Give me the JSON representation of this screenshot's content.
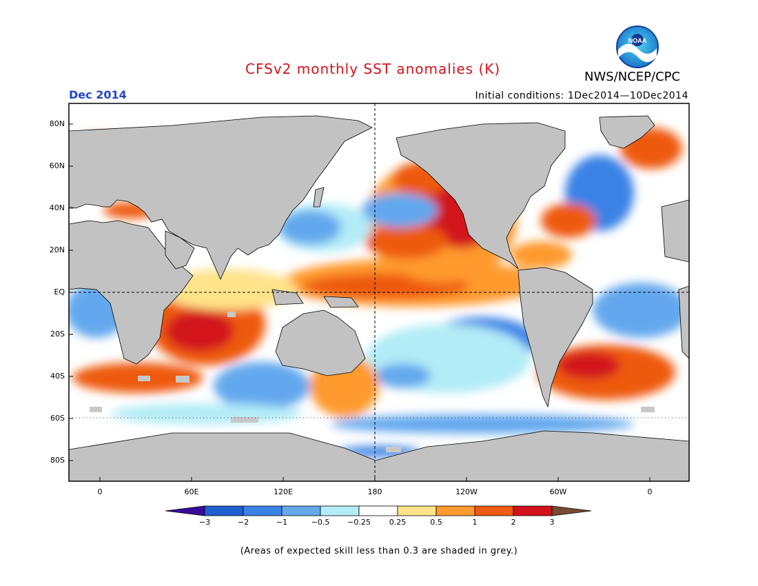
{
  "header": {
    "title": "CFSv2 monthly SST anomalies (K)",
    "agency": "NWS/NCEP/CPC",
    "logo_text": "NOAA",
    "month": "Dec 2014",
    "initial_conditions": "Initial conditions: 1Dec2014—10Dec2014"
  },
  "axes": {
    "lat_labels": [
      "80N",
      "60N",
      "40N",
      "20N",
      "EQ",
      "20S",
      "40S",
      "60S",
      "80S"
    ],
    "lon_labels": [
      "0",
      "60E",
      "120E",
      "180",
      "120W",
      "60W",
      "0"
    ]
  },
  "colorbar": {
    "tick_labels": [
      "−3",
      "−2",
      "−1",
      "−0.5",
      "−0.25",
      "0.25",
      "0.5",
      "1",
      "2",
      "3"
    ],
    "colors": [
      "#3a0a9e",
      "#1f5fd0",
      "#3b82e6",
      "#64a8ee",
      "#b2ecf6",
      "#ffffff",
      "#ffe38a",
      "#ff9a2e",
      "#ee5a10",
      "#d2121b",
      "#a50f12",
      "#7b4a36"
    ],
    "mask_color": "#c8c8c8",
    "land_color": "#c2c2c2"
  },
  "footnote": "(Areas of expected skill less than 0.3 are shaded in grey.)"
}
